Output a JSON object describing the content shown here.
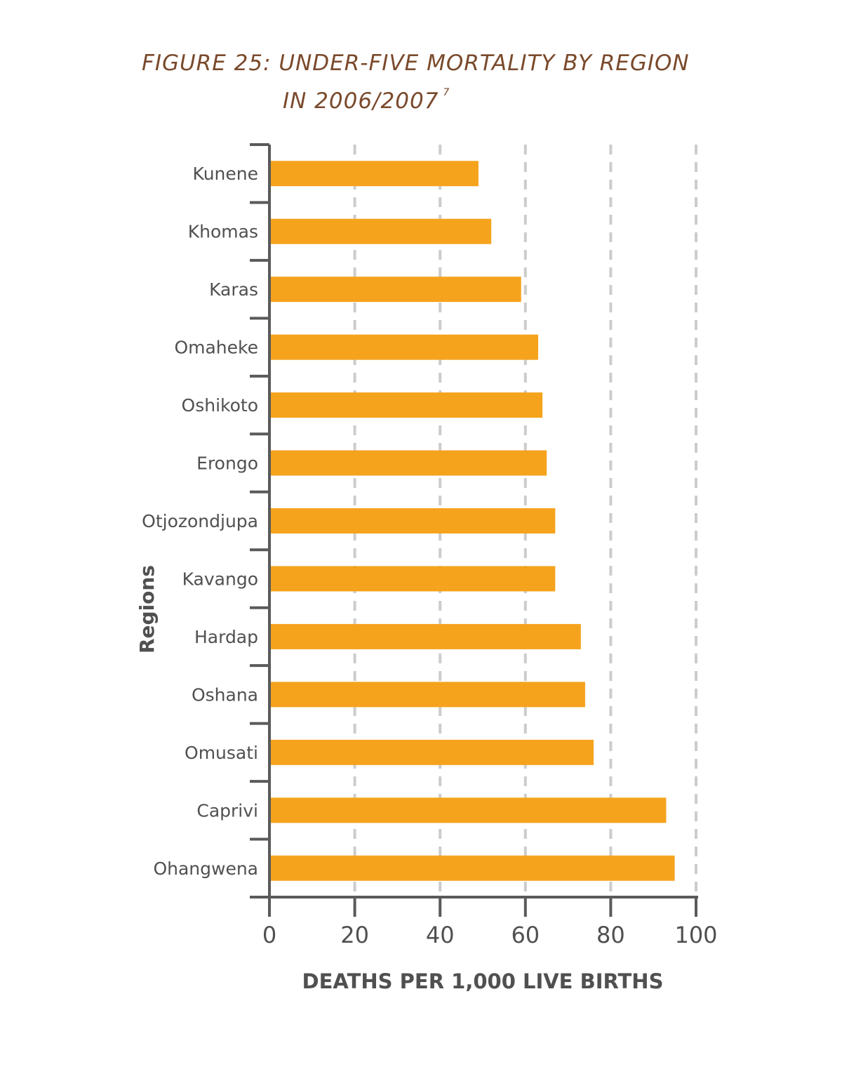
{
  "chart_data": {
    "type": "bar",
    "orientation": "horizontal",
    "title": "FIGURE 25: UNDER-FIVE MORTALITY BY REGION",
    "title_line2": "IN 2006/2007",
    "title_footnote": "7",
    "xlabel": "DEATHS PER 1,000 LIVE BIRTHS",
    "ylabel": "Regions",
    "xlim": [
      0,
      100
    ],
    "xticks": [
      "0",
      "20",
      "40",
      "60",
      "80",
      "100"
    ],
    "categories": [
      "Kunene",
      "Khomas",
      "Karas",
      "Omaheke",
      "Oshikoto",
      "Erongo",
      "Otjozondjupa",
      "Kavango",
      "Hardap",
      "Oshana",
      "Omusati",
      "Caprivi",
      "Ohangwena"
    ],
    "values": [
      49,
      52,
      59,
      63,
      64,
      65,
      67,
      67,
      73,
      74,
      76,
      93,
      95
    ],
    "grid": "vertical dashed",
    "bar_color": "#f5a31d",
    "axis_color": "#5a5a5a",
    "grid_color": "#cccccc"
  }
}
